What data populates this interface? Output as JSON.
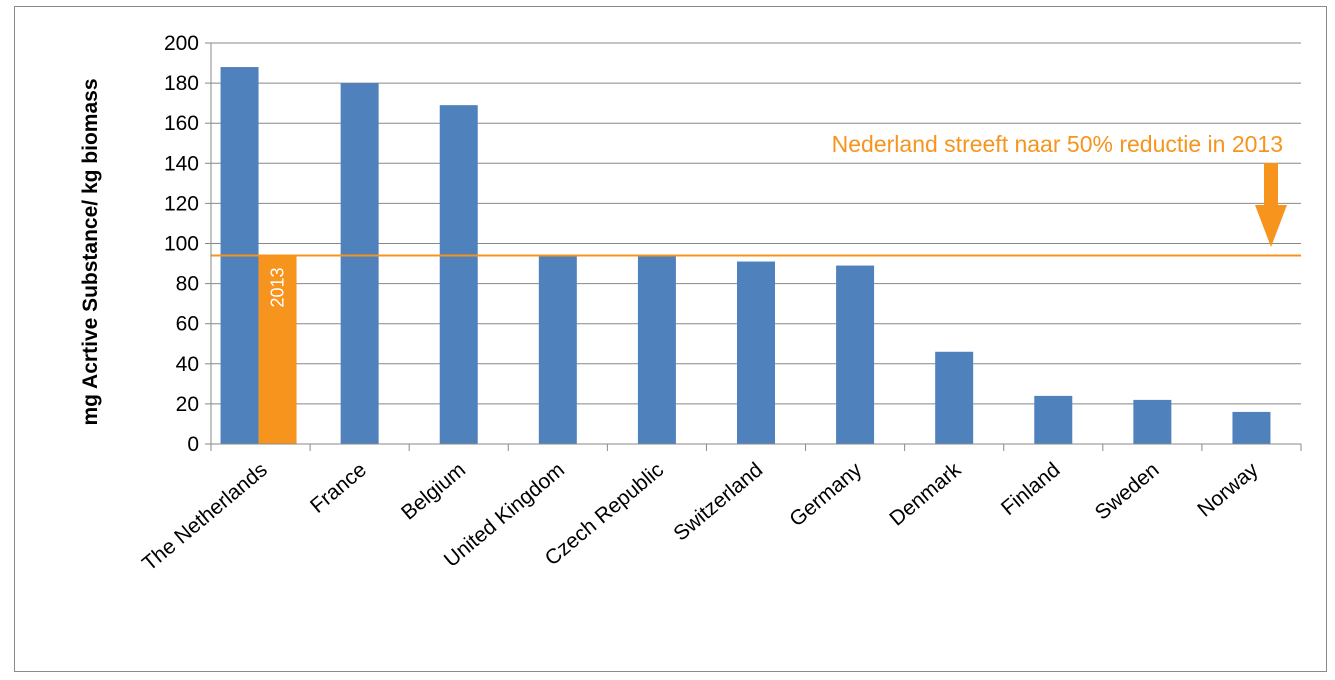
{
  "chart_data": {
    "type": "bar",
    "title": "",
    "xlabel": "",
    "ylabel": "mg Acrtive Substance/ kg biomass",
    "ylim": [
      0,
      200
    ],
    "yticks": [
      0,
      20,
      40,
      60,
      80,
      100,
      120,
      140,
      160,
      180,
      200
    ],
    "grid": true,
    "categories": [
      "The Netherlands",
      "France",
      "Belgium",
      "United Kingdom",
      "Czech Republic",
      "Switzerland",
      "Germany",
      "Denmark",
      "Finland",
      "Sweden",
      "Norway"
    ],
    "values": [
      188,
      180,
      169,
      94,
      94,
      91,
      89,
      46,
      24,
      22,
      16
    ],
    "target_bar": {
      "category": "The Netherlands",
      "value": 94,
      "label": "2013"
    },
    "reference_line": {
      "value": 94
    },
    "annotation": "Nederland streeft naar 50% reductie in 2013",
    "colors": {
      "bar": "#4f81bd",
      "target": "#f7941d",
      "grid": "#888888",
      "axis": "#888888"
    }
  }
}
